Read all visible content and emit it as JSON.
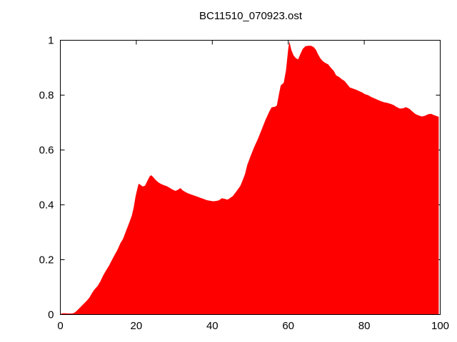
{
  "chart_data": {
    "type": "area",
    "title": "BC11510_070923.ost",
    "xlabel": "",
    "ylabel": "",
    "xlim": [
      0,
      100
    ],
    "ylim": [
      0,
      1
    ],
    "xticks": [
      0,
      20,
      40,
      60,
      80,
      100
    ],
    "xticklabels": [
      "0",
      "20",
      "40",
      "60",
      "80",
      "100"
    ],
    "yticks": [
      0,
      0.2,
      0.4,
      0.6,
      0.8,
      1
    ],
    "yticklabels": [
      "0",
      "0.2",
      "0.4",
      "0.6",
      "0.8",
      "1"
    ],
    "grid": false,
    "legend": "none",
    "fill_color": "#ff0000",
    "axis_color": "#000000",
    "background_color": "#ffffff",
    "points": [
      [
        0.2,
        0.004
      ],
      [
        1,
        0.005
      ],
      [
        2,
        0.004
      ],
      [
        3,
        0.004
      ],
      [
        3.6,
        0.006
      ],
      [
        4.2,
        0.012
      ],
      [
        4.8,
        0.02
      ],
      [
        5.5,
        0.03
      ],
      [
        6.2,
        0.04
      ],
      [
        7,
        0.051
      ],
      [
        7.7,
        0.063
      ],
      [
        8.4,
        0.08
      ],
      [
        9,
        0.092
      ],
      [
        9.8,
        0.104
      ],
      [
        10.5,
        0.12
      ],
      [
        11.3,
        0.143
      ],
      [
        12,
        0.16
      ],
      [
        12.8,
        0.178
      ],
      [
        13.5,
        0.197
      ],
      [
        14.3,
        0.218
      ],
      [
        15,
        0.235
      ],
      [
        15.8,
        0.26
      ],
      [
        16.5,
        0.276
      ],
      [
        17.3,
        0.305
      ],
      [
        18,
        0.33
      ],
      [
        18.8,
        0.36
      ],
      [
        19.3,
        0.39
      ],
      [
        19.8,
        0.43
      ],
      [
        20.2,
        0.455
      ],
      [
        20.6,
        0.477
      ],
      [
        21.1,
        0.473
      ],
      [
        21.7,
        0.467
      ],
      [
        22.3,
        0.47
      ],
      [
        22.9,
        0.487
      ],
      [
        23.5,
        0.503
      ],
      [
        23.9,
        0.508
      ],
      [
        24.4,
        0.502
      ],
      [
        25,
        0.492
      ],
      [
        25.7,
        0.483
      ],
      [
        26.4,
        0.477
      ],
      [
        27.2,
        0.472
      ],
      [
        28,
        0.468
      ],
      [
        28.8,
        0.462
      ],
      [
        29.6,
        0.455
      ],
      [
        30.3,
        0.451
      ],
      [
        31,
        0.455
      ],
      [
        31.6,
        0.461
      ],
      [
        32.3,
        0.452
      ],
      [
        33,
        0.446
      ],
      [
        33.8,
        0.441
      ],
      [
        34.6,
        0.437
      ],
      [
        35.4,
        0.433
      ],
      [
        36.2,
        0.429
      ],
      [
        37,
        0.425
      ],
      [
        37.8,
        0.421
      ],
      [
        38.6,
        0.417
      ],
      [
        39.4,
        0.415
      ],
      [
        40.2,
        0.413
      ],
      [
        41,
        0.414
      ],
      [
        41.8,
        0.417
      ],
      [
        42.5,
        0.424
      ],
      [
        43.2,
        0.422
      ],
      [
        44,
        0.419
      ],
      [
        44.7,
        0.425
      ],
      [
        45.4,
        0.432
      ],
      [
        46.1,
        0.445
      ],
      [
        46.8,
        0.458
      ],
      [
        47.4,
        0.47
      ],
      [
        48,
        0.49
      ],
      [
        48.6,
        0.512
      ],
      [
        49.2,
        0.545
      ],
      [
        50,
        0.575
      ],
      [
        51,
        0.61
      ],
      [
        52,
        0.64
      ],
      [
        53,
        0.675
      ],
      [
        54,
        0.71
      ],
      [
        55,
        0.74
      ],
      [
        55.6,
        0.755
      ],
      [
        56.5,
        0.758
      ],
      [
        57,
        0.762
      ],
      [
        57.5,
        0.8
      ],
      [
        58,
        0.835
      ],
      [
        58.8,
        0.845
      ],
      [
        59.4,
        0.89
      ],
      [
        60,
        0.97
      ],
      [
        60.3,
        0.995
      ],
      [
        60.8,
        0.965
      ],
      [
        61.4,
        0.945
      ],
      [
        62,
        0.935
      ],
      [
        62.6,
        0.93
      ],
      [
        63.2,
        0.95
      ],
      [
        63.8,
        0.968
      ],
      [
        64.5,
        0.978
      ],
      [
        65.2,
        0.98
      ],
      [
        66,
        0.98
      ],
      [
        66.7,
        0.975
      ],
      [
        67.3,
        0.965
      ],
      [
        67.8,
        0.95
      ],
      [
        68.4,
        0.935
      ],
      [
        69,
        0.925
      ],
      [
        69.7,
        0.918
      ],
      [
        70.5,
        0.912
      ],
      [
        71.2,
        0.9
      ],
      [
        72,
        0.888
      ],
      [
        72.6,
        0.872
      ],
      [
        73.4,
        0.866
      ],
      [
        74.1,
        0.858
      ],
      [
        74.8,
        0.852
      ],
      [
        75.5,
        0.84
      ],
      [
        76.2,
        0.828
      ],
      [
        77,
        0.824
      ],
      [
        77.8,
        0.82
      ],
      [
        78.6,
        0.815
      ],
      [
        79.4,
        0.81
      ],
      [
        80.2,
        0.803
      ],
      [
        81,
        0.8
      ],
      [
        81.9,
        0.793
      ],
      [
        82.7,
        0.788
      ],
      [
        83.5,
        0.783
      ],
      [
        84.4,
        0.778
      ],
      [
        85.2,
        0.774
      ],
      [
        86,
        0.772
      ],
      [
        86.9,
        0.768
      ],
      [
        87.7,
        0.764
      ],
      [
        88.5,
        0.757
      ],
      [
        89.4,
        0.751
      ],
      [
        90.2,
        0.752
      ],
      [
        91,
        0.756
      ],
      [
        91.9,
        0.75
      ],
      [
        92.7,
        0.74
      ],
      [
        93.5,
        0.731
      ],
      [
        94.3,
        0.726
      ],
      [
        95.2,
        0.722
      ],
      [
        96,
        0.725
      ],
      [
        96.8,
        0.73
      ],
      [
        97.6,
        0.732
      ],
      [
        98.4,
        0.727
      ],
      [
        99.2,
        0.723
      ],
      [
        99.6,
        0.721
      ]
    ]
  }
}
